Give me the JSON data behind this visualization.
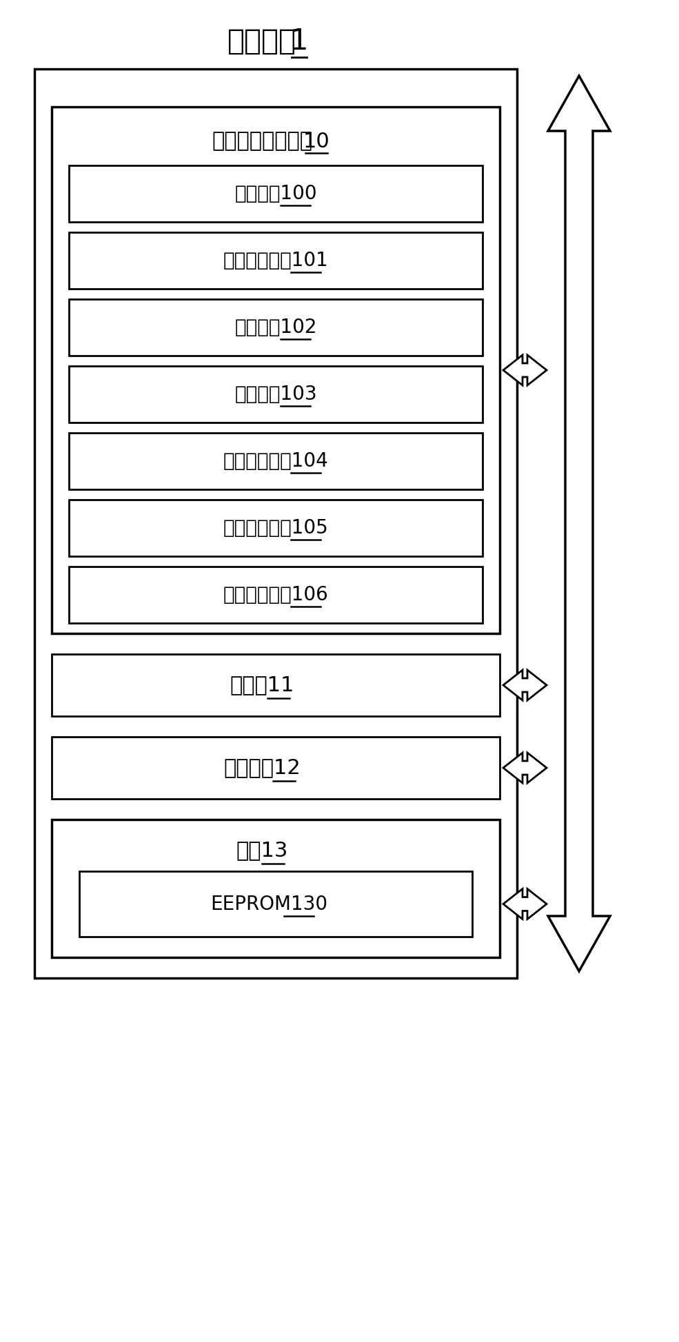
{
  "bg_color": "#ffffff",
  "title_chinese": "电子设备",
  "title_num": "1",
  "system_label_chinese": "内存自检修正系统",
  "system_label_num": "10",
  "modules": [
    {
      "label": "获取模块",
      "num": "100"
    },
    {
      "label": "第一判断模块",
      "num": "101"
    },
    {
      "label": "调整模块",
      "num": "102"
    },
    {
      "label": "设置模块",
      "num": "103"
    },
    {
      "label": "第二判断模块",
      "num": "104"
    },
    {
      "label": "第一提醒模块",
      "num": "105"
    },
    {
      "label": "第二提醒模块",
      "num": "106"
    }
  ],
  "processor_label": "处理器",
  "processor_num": "11",
  "storage_label": "存储装置",
  "storage_num": "12",
  "memory_label": "内存",
  "memory_num": "13",
  "eeprom_label": "EEPROM",
  "eeprom_num": "130",
  "lw_outer": 2.5,
  "lw_inner": 2.0,
  "font_size_title": 30,
  "font_size_system": 22,
  "font_size_module": 20,
  "font_size_bottom": 22,
  "font_size_eeprom": 20
}
